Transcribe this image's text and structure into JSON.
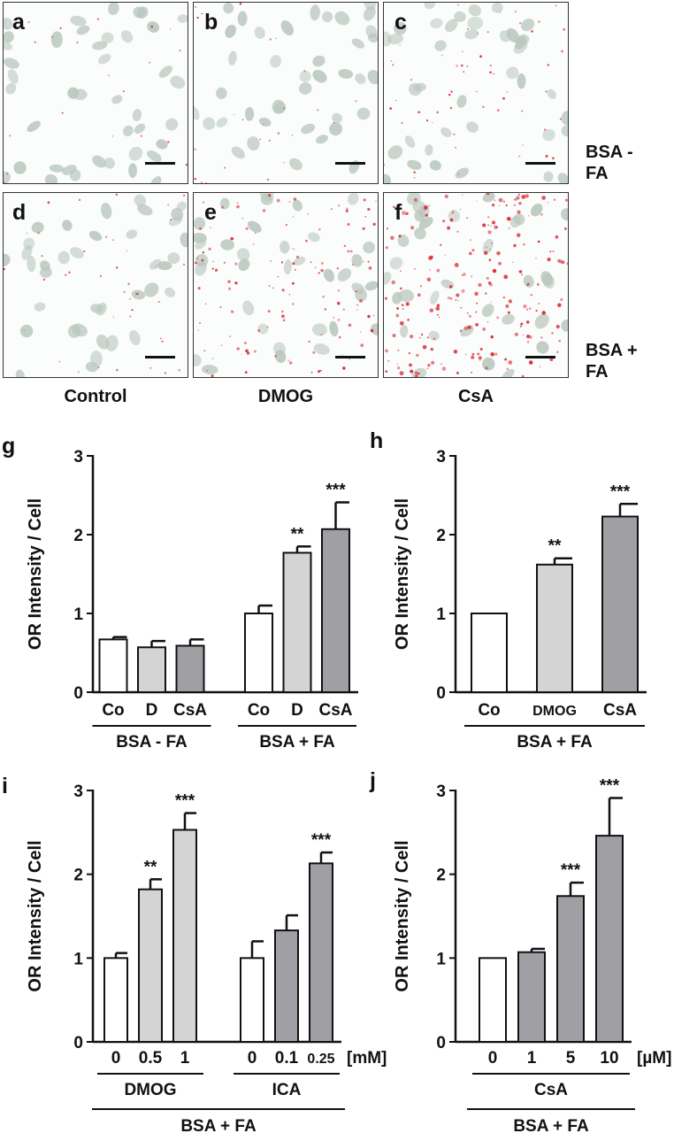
{
  "micrographs": {
    "panels": [
      {
        "letter": "a",
        "row": "BSA - FA",
        "col": "Control",
        "red_level": 0.04
      },
      {
        "letter": "b",
        "row": "BSA - FA",
        "col": "DMOG",
        "red_level": 0.06
      },
      {
        "letter": "c",
        "row": "BSA - FA",
        "col": "CsA",
        "red_level": 0.18
      },
      {
        "letter": "d",
        "row": "BSA + FA",
        "col": "Control",
        "red_level": 0.12
      },
      {
        "letter": "e",
        "row": "BSA + FA",
        "col": "DMOG",
        "red_level": 0.45
      },
      {
        "letter": "f",
        "row": "BSA + FA",
        "col": "CsA",
        "red_level": 0.8
      }
    ],
    "column_labels": [
      "Control",
      "DMOG",
      "CsA"
    ],
    "row_labels": [
      {
        "line1": "BSA -",
        "line2": "FA"
      },
      {
        "line1": "BSA +",
        "line2": "FA"
      }
    ],
    "colors": {
      "nucleus": "#b9c7bd",
      "droplet": "#d8262e",
      "background": "#fbfcfc"
    }
  },
  "chart_data": [
    {
      "id": "g",
      "letter": "g",
      "type": "bar",
      "ylabel": "OR Intensity / Cell",
      "ylim": [
        0,
        3
      ],
      "yticks": [
        "0",
        "1",
        "2",
        "3"
      ],
      "categories": [
        "Co",
        "D",
        "CsA",
        "Co",
        "D",
        "CsA"
      ],
      "values": [
        0.67,
        0.57,
        0.59,
        1.0,
        1.77,
        2.07
      ],
      "errors": [
        0.03,
        0.08,
        0.08,
        0.1,
        0.08,
        0.34
      ],
      "colors": [
        "#ffffff",
        "#d4d4d4",
        "#a0a0a4",
        "#ffffff",
        "#d4d4d4",
        "#a0a0a4"
      ],
      "annotations": [
        "",
        "",
        "",
        "",
        "**",
        "***"
      ],
      "groups": [
        {
          "label": "BSA - FA",
          "start": 0,
          "end": 2
        },
        {
          "label": "BSA + FA",
          "start": 3,
          "end": 5
        }
      ],
      "super_groups": [],
      "unit_label": ""
    },
    {
      "id": "h",
      "letter": "h",
      "type": "bar",
      "ylabel": "OR Intensity / Cell",
      "ylim": [
        0,
        3
      ],
      "yticks": [
        "0",
        "1",
        "2",
        "3"
      ],
      "categories": [
        "Co",
        "DMOG",
        "CsA"
      ],
      "values": [
        1.0,
        1.62,
        2.23
      ],
      "errors": [
        0.0,
        0.08,
        0.16
      ],
      "colors": [
        "#ffffff",
        "#d4d4d4",
        "#a0a0a4"
      ],
      "annotations": [
        "",
        "**",
        "***"
      ],
      "groups": [
        {
          "label": "BSA + FA",
          "start": 0,
          "end": 2
        }
      ],
      "super_groups": [],
      "unit_label": ""
    },
    {
      "id": "i",
      "letter": "i",
      "type": "bar",
      "ylabel": "OR Intensity / Cell",
      "ylim": [
        0,
        3
      ],
      "yticks": [
        "0",
        "1",
        "2",
        "3"
      ],
      "categories": [
        "0",
        "0.5",
        "1",
        "0",
        "0.1",
        "0.25"
      ],
      "values": [
        1.0,
        1.82,
        2.53,
        1.0,
        1.33,
        2.13
      ],
      "errors": [
        0.06,
        0.12,
        0.2,
        0.2,
        0.18,
        0.13
      ],
      "colors": [
        "#ffffff",
        "#d4d4d4",
        "#d4d4d4",
        "#ffffff",
        "#a0a0a4",
        "#a0a0a4"
      ],
      "annotations": [
        "",
        "**",
        "***",
        "",
        "",
        "***"
      ],
      "groups": [
        {
          "label": "DMOG",
          "start": 0,
          "end": 2
        },
        {
          "label": "ICA",
          "start": 3,
          "end": 5
        }
      ],
      "super_groups": [
        {
          "label": "BSA + FA",
          "start": 0,
          "end": 5
        }
      ],
      "unit_label": "[mM]"
    },
    {
      "id": "j",
      "letter": "j",
      "type": "bar",
      "ylabel": "OR Intensity / Cell",
      "ylim": [
        0,
        3
      ],
      "yticks": [
        "0",
        "1",
        "2",
        "3"
      ],
      "categories": [
        "0",
        "1",
        "5",
        "10"
      ],
      "values": [
        1.0,
        1.07,
        1.74,
        2.46
      ],
      "errors": [
        0.0,
        0.04,
        0.16,
        0.45
      ],
      "colors": [
        "#ffffff",
        "#a0a0a4",
        "#a0a0a4",
        "#a0a0a4"
      ],
      "annotations": [
        "",
        "",
        "***",
        "***"
      ],
      "groups": [
        {
          "label": "CsA",
          "start": 0,
          "end": 3
        }
      ],
      "super_groups": [
        {
          "label": "BSA + FA",
          "start": 0,
          "end": 3
        }
      ],
      "unit_label": "[µM]"
    }
  ]
}
